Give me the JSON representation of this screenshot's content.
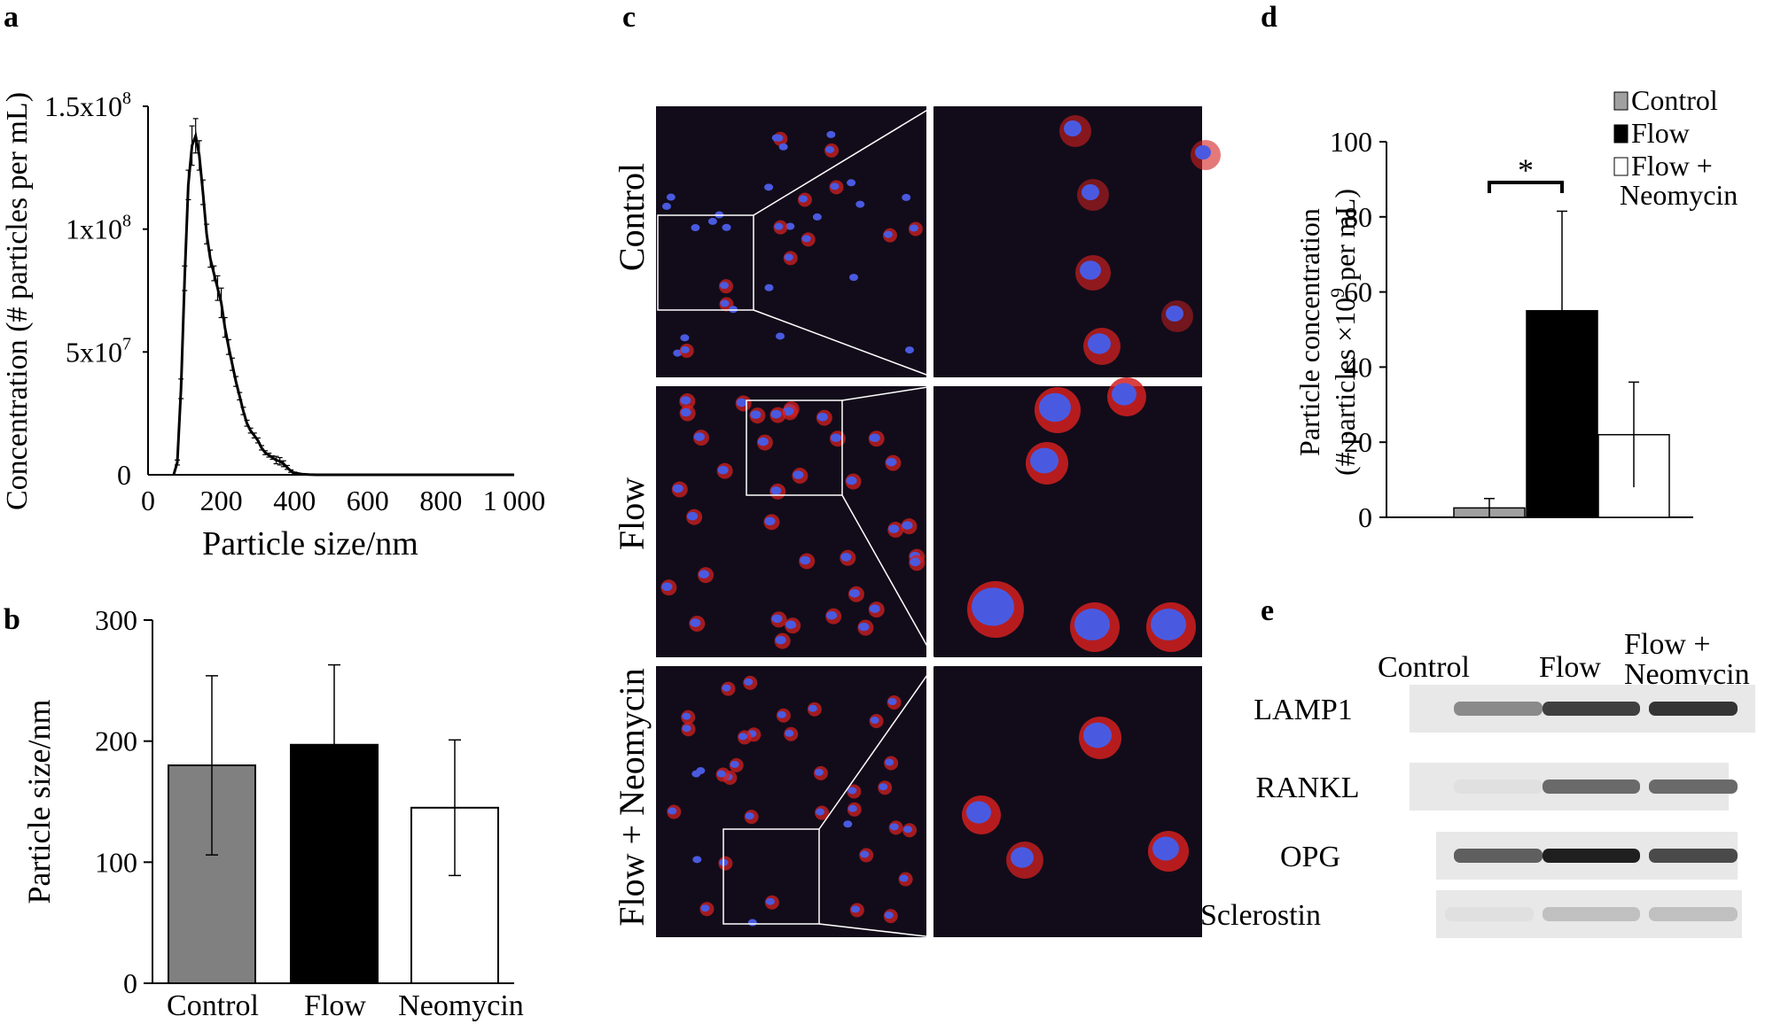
{
  "panels": [
    {
      "letter": "a"
    },
    {
      "letter": "b"
    },
    {
      "letter": "c"
    },
    {
      "letter": "d"
    },
    {
      "letter": "e"
    }
  ],
  "chart_data": [
    {
      "panel": "a",
      "type": "line",
      "xlabel": "Particle size/nm",
      "ylabel": "Concentration (# particles per mL)",
      "xlim": [
        0,
        1000
      ],
      "ylim": [
        0,
        150000000
      ],
      "xticks": [
        "0",
        "200",
        "400",
        "600",
        "800",
        "1 000"
      ],
      "ytick_labels": [
        {
          "base": "0",
          "exp": ""
        },
        {
          "base": "5x10",
          "exp": "7"
        },
        {
          "base": "1x10",
          "exp": "8"
        },
        {
          "base": "1.5x10",
          "exp": "8"
        }
      ],
      "ytick_values": [
        0,
        50000000,
        100000000,
        150000000
      ],
      "x": [
        70,
        80,
        90,
        100,
        110,
        120,
        130,
        140,
        150,
        160,
        170,
        180,
        190,
        200,
        210,
        220,
        230,
        240,
        250,
        260,
        270,
        280,
        290,
        300,
        310,
        320,
        330,
        340,
        350,
        360,
        370,
        380,
        390,
        400,
        420,
        440,
        460,
        480,
        500,
        550,
        600,
        700,
        800,
        1000
      ],
      "y": [
        0,
        5000000,
        35000000,
        80000000,
        118000000,
        134000000,
        138000000,
        130000000,
        115000000,
        98000000,
        88000000,
        82000000,
        76000000,
        70000000,
        60000000,
        52000000,
        45000000,
        38000000,
        32000000,
        26000000,
        21000000,
        18000000,
        16000000,
        14000000,
        11000000,
        9000000,
        8000000,
        7000000,
        6000000,
        5500000,
        4500000,
        3000000,
        1500000,
        800000,
        300000,
        100000,
        0,
        0,
        0,
        0,
        0,
        0,
        0,
        0
      ],
      "err": [
        0,
        1000000,
        4000000,
        5000000,
        6000000,
        8000000,
        7000000,
        6000000,
        5000000,
        4000000,
        3500000,
        3000000,
        5000000,
        6000000,
        4000000,
        3000000,
        2500000,
        2000000,
        1500000,
        1500000,
        1200000,
        1000000,
        1000000,
        1000000,
        900000,
        800000,
        800000,
        700000,
        1500000,
        1500000,
        1200000,
        800000,
        500000,
        300000,
        200000,
        100000,
        0,
        0,
        0,
        0,
        0,
        0,
        0,
        0
      ]
    },
    {
      "panel": "b",
      "type": "bar",
      "ylabel": "Particle size/nm",
      "categories": [
        "Control",
        "Flow",
        "Neomycin"
      ],
      "values": [
        180,
        197,
        145
      ],
      "errors": [
        74,
        66,
        56
      ],
      "colors": [
        "#808080",
        "#000000",
        "#ffffff"
      ],
      "ylim": [
        0,
        300
      ],
      "yticks": [
        0,
        100,
        200,
        300
      ]
    },
    {
      "panel": "d",
      "type": "bar",
      "ylabel_line1": "Particle concentration",
      "ylabel_line2_pre": "(# particles ×10",
      "ylabel_line2_exp": "9",
      "ylabel_line2_post": " per mL)",
      "categories": [
        "Control",
        "Flow",
        "Flow + Neomycin"
      ],
      "values": [
        2.5,
        55,
        22
      ],
      "errors": [
        2.5,
        26.5,
        14
      ],
      "colors": [
        "#a0a0a0",
        "#000000",
        "#ffffff"
      ],
      "ylim": [
        0,
        100
      ],
      "yticks": [
        0,
        20,
        40,
        60,
        80,
        100
      ],
      "legend": [
        "Control",
        "Flow",
        "Flow +",
        "Neomycin"
      ],
      "significance": "*"
    }
  ],
  "micrograph": {
    "row_labels": [
      "Control",
      "Flow",
      "Flow + Neomycin"
    ],
    "colors": {
      "background": "#120c1a",
      "nucleus": "#4a5ae0",
      "stain": "#d42020"
    }
  },
  "blot": {
    "lanes": [
      "Control",
      "Flow"
    ],
    "lane3_line1": "Flow +",
    "lane3_line2": "Neomycin",
    "rows": [
      {
        "label": "LAMP1",
        "intensity": [
          0.45,
          0.8,
          0.85
        ]
      },
      {
        "label": "RANKL",
        "intensity": [
          0.05,
          0.6,
          0.6
        ]
      },
      {
        "label": "OPG",
        "intensity": [
          0.65,
          0.95,
          0.75
        ]
      },
      {
        "label": "Sclerostin",
        "intensity": [
          0.05,
          0.2,
          0.2
        ]
      }
    ]
  }
}
